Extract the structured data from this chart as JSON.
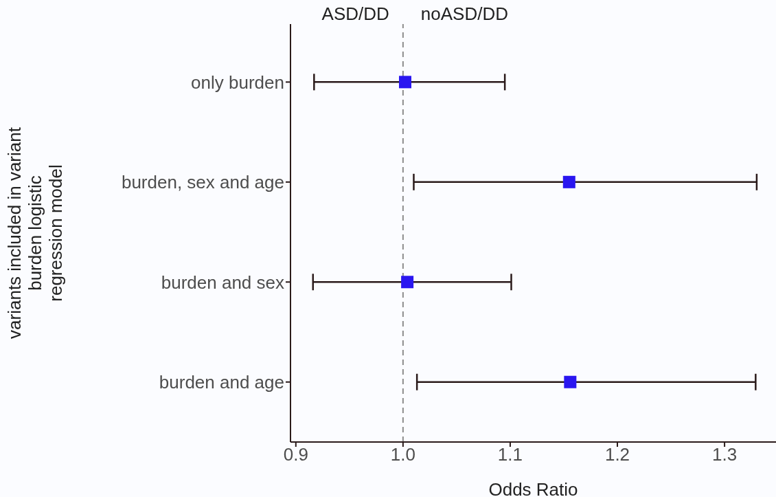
{
  "chart_data": {
    "type": "scatter",
    "xlabel": "Odds Ratio",
    "ylabel": "variants included in variant\nburden logistic\nregression model",
    "categories": [
      "only burden",
      "burden, sex and age",
      "burden and sex",
      "burden and age"
    ],
    "values": [
      1.002,
      1.155,
      1.004,
      1.156
    ],
    "errors": [
      [
        0.917,
        1.095
      ],
      [
        1.01,
        1.33
      ],
      [
        0.916,
        1.101
      ],
      [
        1.013,
        1.329
      ]
    ],
    "color": "#2a16f0",
    "marker": "square",
    "orientation": "horizontal",
    "xlim": [
      0.895,
      1.348
    ],
    "xticks": [
      {
        "value": 0.9,
        "label": "0.9"
      },
      {
        "value": 1.0,
        "label": "1.0"
      },
      {
        "value": 1.1,
        "label": "1.1"
      },
      {
        "value": 1.2,
        "label": "1.2"
      },
      {
        "value": 1.3,
        "label": "1.3"
      }
    ],
    "ref_lines": [
      {
        "axis": "x",
        "value": 1.0,
        "color": "#8c8c8c",
        "line_style": "dashed"
      }
    ],
    "annotations": [
      "ASD/DD",
      "noASD/DD"
    ],
    "grid": false,
    "legend": false
  }
}
